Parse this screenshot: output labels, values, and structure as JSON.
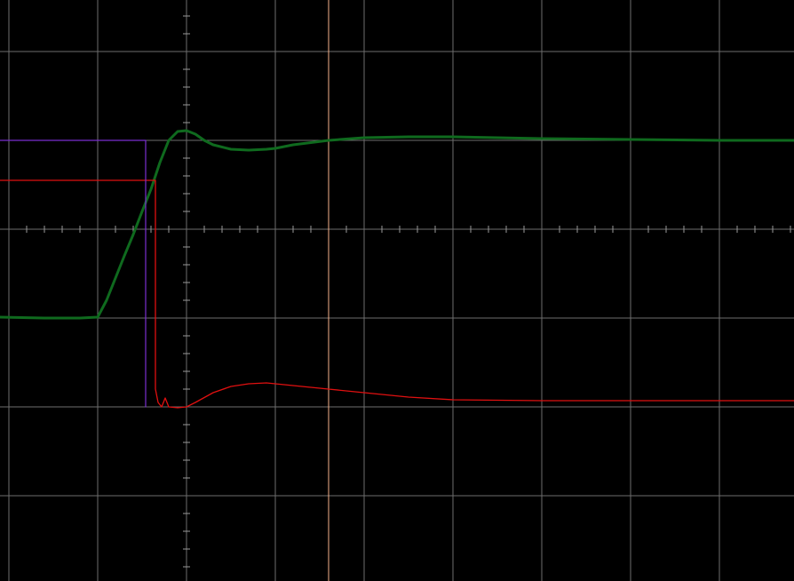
{
  "chart_data": {
    "type": "line",
    "title": "",
    "xlabel": "",
    "ylabel": "",
    "grid": true,
    "xlim": [
      -2.1,
      6.84
    ],
    "ylim": [
      -3.96,
      2.58
    ],
    "background": "#000000",
    "colors": {
      "grid": "#6e6e6e",
      "axis": "#9a9a9a",
      "cursor": "#f4b08a",
      "trace_green": "#0f6a1e",
      "trace_red": "#e01010",
      "marker_purple": "#7a2fd0",
      "marker_red": "#e01010"
    },
    "cursor_x": 1.6,
    "series": [
      {
        "color": "#0f6a1e",
        "x": [
          -2.1,
          -1.6,
          -1.2,
          -1.0,
          -0.9,
          -0.8,
          -0.7,
          -0.6,
          -0.5,
          -0.4,
          -0.3,
          -0.2,
          -0.1,
          0.0,
          0.1,
          0.2,
          0.3,
          0.5,
          0.7,
          0.9,
          1.0,
          1.2,
          1.6,
          2.0,
          2.5,
          3.0,
          4.0,
          5.0,
          6.0,
          6.84
        ],
        "y": [
          -0.99,
          -1.0,
          -1.0,
          -0.99,
          -0.8,
          -0.55,
          -0.3,
          -0.06,
          0.2,
          0.45,
          0.75,
          1.0,
          1.1,
          1.11,
          1.07,
          1.0,
          0.95,
          0.9,
          0.89,
          0.9,
          0.91,
          0.95,
          1.0,
          1.03,
          1.04,
          1.04,
          1.02,
          1.01,
          1.0,
          1.0
        ]
      },
      {
        "color": "#e01010",
        "x": [
          -2.1,
          -0.35,
          -0.35,
          -0.32,
          -0.28,
          -0.24,
          -0.2,
          -0.1,
          0.0,
          0.1,
          0.3,
          0.5,
          0.7,
          0.9,
          1.0,
          1.2,
          1.6,
          2.0,
          2.5,
          3.0,
          4.0,
          5.0,
          6.0,
          6.84
        ],
        "y": [
          0.55,
          0.55,
          -1.8,
          -1.95,
          -2.0,
          -1.9,
          -2.0,
          -2.01,
          -2.0,
          -1.95,
          -1.84,
          -1.77,
          -1.74,
          -1.73,
          -1.74,
          -1.76,
          -1.8,
          -1.84,
          -1.89,
          -1.92,
          -1.93,
          -1.93,
          -1.93,
          -1.93
        ]
      },
      {
        "color": "#7a2fd0",
        "x": [
          -2.1,
          -0.46,
          -0.46
        ],
        "y": [
          1.0,
          1.0,
          -2.0
        ]
      }
    ]
  }
}
